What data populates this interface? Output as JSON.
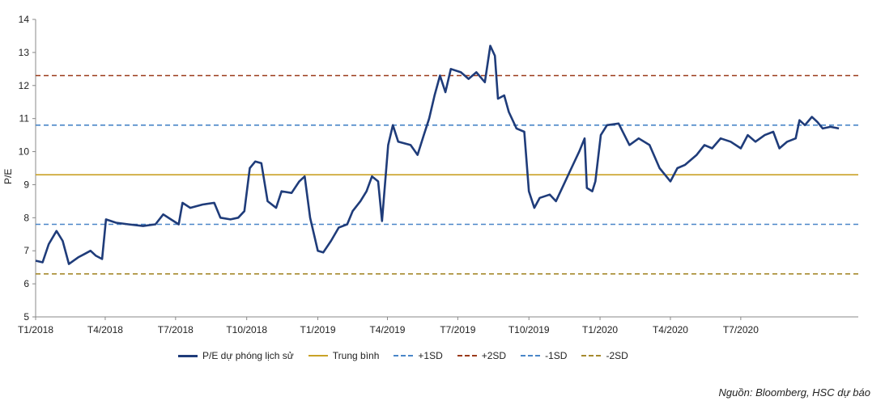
{
  "chart_data": {
    "type": "line",
    "ylabel": "P/E",
    "ylim": [
      5,
      14
    ],
    "yticks": [
      5,
      6,
      7,
      8,
      9,
      10,
      11,
      12,
      13,
      14
    ],
    "xlim": [
      "2018-01-01",
      "2020-11-30"
    ],
    "xticks": [
      {
        "date": "2018-01-01",
        "label": "T1/2018"
      },
      {
        "date": "2018-04-01",
        "label": "T4/2018"
      },
      {
        "date": "2018-07-01",
        "label": "T7/2018"
      },
      {
        "date": "2018-10-01",
        "label": "T10/2018"
      },
      {
        "date": "2019-01-01",
        "label": "T1/2019"
      },
      {
        "date": "2019-04-01",
        "label": "T4/2019"
      },
      {
        "date": "2019-07-01",
        "label": "T7/2019"
      },
      {
        "date": "2019-10-01",
        "label": "T10/2019"
      },
      {
        "date": "2020-01-01",
        "label": "T1/2020"
      },
      {
        "date": "2020-04-01",
        "label": "T4/2020"
      },
      {
        "date": "2020-07-01",
        "label": "T7/2020"
      }
    ],
    "grid": false,
    "legend_position": "bottom",
    "series": [
      {
        "name": "P/E dự phóng lịch sử",
        "color": "#1f3c7a",
        "style": "solid",
        "points": [
          [
            "2018-01-01",
            6.7
          ],
          [
            "2018-01-10",
            6.65
          ],
          [
            "2018-01-18",
            7.2
          ],
          [
            "2018-01-28",
            7.6
          ],
          [
            "2018-02-05",
            7.3
          ],
          [
            "2018-02-13",
            6.6
          ],
          [
            "2018-02-25",
            6.8
          ],
          [
            "2018-03-05",
            6.9
          ],
          [
            "2018-03-13",
            7.0
          ],
          [
            "2018-03-20",
            6.85
          ],
          [
            "2018-03-28",
            6.75
          ],
          [
            "2018-04-02",
            7.95
          ],
          [
            "2018-04-15",
            7.85
          ],
          [
            "2018-05-01",
            7.8
          ],
          [
            "2018-05-20",
            7.75
          ],
          [
            "2018-06-05",
            7.8
          ],
          [
            "2018-06-15",
            8.1
          ],
          [
            "2018-06-25",
            7.95
          ],
          [
            "2018-07-05",
            7.8
          ],
          [
            "2018-07-10",
            8.45
          ],
          [
            "2018-07-20",
            8.3
          ],
          [
            "2018-08-05",
            8.4
          ],
          [
            "2018-08-20",
            8.45
          ],
          [
            "2018-08-28",
            8.0
          ],
          [
            "2018-09-10",
            7.95
          ],
          [
            "2018-09-20",
            8.0
          ],
          [
            "2018-09-28",
            8.2
          ],
          [
            "2018-10-05",
            9.5
          ],
          [
            "2018-10-12",
            9.7
          ],
          [
            "2018-10-20",
            9.65
          ],
          [
            "2018-10-28",
            8.5
          ],
          [
            "2018-11-08",
            8.3
          ],
          [
            "2018-11-15",
            8.8
          ],
          [
            "2018-11-28",
            8.75
          ],
          [
            "2018-12-08",
            9.1
          ],
          [
            "2018-12-15",
            9.25
          ],
          [
            "2018-12-22",
            8.0
          ],
          [
            "2019-01-01",
            7.0
          ],
          [
            "2019-01-08",
            6.95
          ],
          [
            "2019-01-18",
            7.3
          ],
          [
            "2019-01-28",
            7.7
          ],
          [
            "2019-02-08",
            7.8
          ],
          [
            "2019-02-15",
            8.2
          ],
          [
            "2019-02-25",
            8.5
          ],
          [
            "2019-03-05",
            8.8
          ],
          [
            "2019-03-12",
            9.25
          ],
          [
            "2019-03-20",
            9.1
          ],
          [
            "2019-03-25",
            7.9
          ],
          [
            "2019-04-02",
            10.2
          ],
          [
            "2019-04-08",
            10.8
          ],
          [
            "2019-04-15",
            10.3
          ],
          [
            "2019-05-01",
            10.2
          ],
          [
            "2019-05-10",
            9.9
          ],
          [
            "2019-05-18",
            10.5
          ],
          [
            "2019-05-25",
            11.0
          ],
          [
            "2019-06-01",
            11.7
          ],
          [
            "2019-06-08",
            12.3
          ],
          [
            "2019-06-15",
            11.8
          ],
          [
            "2019-06-22",
            12.5
          ],
          [
            "2019-07-05",
            12.4
          ],
          [
            "2019-07-15",
            12.2
          ],
          [
            "2019-07-25",
            12.4
          ],
          [
            "2019-08-05",
            12.1
          ],
          [
            "2019-08-12",
            13.2
          ],
          [
            "2019-08-18",
            12.9
          ],
          [
            "2019-08-22",
            11.6
          ],
          [
            "2019-08-30",
            11.7
          ],
          [
            "2019-09-05",
            11.2
          ],
          [
            "2019-09-15",
            10.7
          ],
          [
            "2019-09-25",
            10.6
          ],
          [
            "2019-10-01",
            8.8
          ],
          [
            "2019-10-08",
            8.3
          ],
          [
            "2019-10-15",
            8.6
          ],
          [
            "2019-10-28",
            8.7
          ],
          [
            "2019-11-05",
            8.5
          ],
          [
            "2019-11-15",
            9.0
          ],
          [
            "2019-11-25",
            9.5
          ],
          [
            "2019-12-05",
            10.0
          ],
          [
            "2019-12-12",
            10.4
          ],
          [
            "2019-12-15",
            8.9
          ],
          [
            "2019-12-22",
            8.8
          ],
          [
            "2019-12-26",
            9.1
          ],
          [
            "2020-01-02",
            10.5
          ],
          [
            "2020-01-10",
            10.8
          ],
          [
            "2020-01-25",
            10.85
          ],
          [
            "2020-02-08",
            10.2
          ],
          [
            "2020-02-20",
            10.4
          ],
          [
            "2020-03-05",
            10.2
          ],
          [
            "2020-03-18",
            9.5
          ],
          [
            "2020-03-25",
            9.3
          ],
          [
            "2020-04-01",
            9.1
          ],
          [
            "2020-04-10",
            9.5
          ],
          [
            "2020-04-20",
            9.6
          ],
          [
            "2020-05-05",
            9.9
          ],
          [
            "2020-05-15",
            10.2
          ],
          [
            "2020-05-25",
            10.1
          ],
          [
            "2020-06-05",
            10.4
          ],
          [
            "2020-06-18",
            10.3
          ],
          [
            "2020-07-01",
            10.1
          ],
          [
            "2020-07-10",
            10.5
          ],
          [
            "2020-07-20",
            10.3
          ],
          [
            "2020-08-01",
            10.5
          ],
          [
            "2020-08-12",
            10.6
          ],
          [
            "2020-08-20",
            10.1
          ],
          [
            "2020-08-30",
            10.3
          ],
          [
            "2020-09-10",
            10.4
          ],
          [
            "2020-09-15",
            10.95
          ],
          [
            "2020-09-22",
            10.8
          ],
          [
            "2020-10-01",
            11.05
          ],
          [
            "2020-10-08",
            10.9
          ],
          [
            "2020-10-15",
            10.7
          ],
          [
            "2020-10-25",
            10.75
          ],
          [
            "2020-11-05",
            10.7
          ]
        ]
      },
      {
        "name": "Trung bình",
        "color": "#c9a227",
        "style": "solid",
        "value": 9.3
      },
      {
        "name": "+1SD",
        "color": "#4a86c8",
        "style": "dashed",
        "value": 10.8
      },
      {
        "name": "+2SD",
        "color": "#9b3a1a",
        "style": "dashed",
        "value": 12.3
      },
      {
        "name": "-1SD",
        "color": "#4a86c8",
        "style": "dashed",
        "value": 7.8
      },
      {
        "name": "-2SD",
        "color": "#a68a2e",
        "style": "dashed",
        "value": 6.3
      }
    ]
  },
  "source_note": "Nguồn: Bloomberg, HSC dự báo"
}
